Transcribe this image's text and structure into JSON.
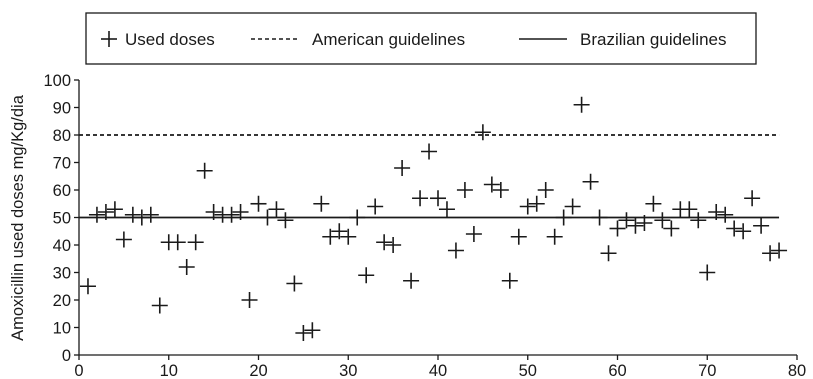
{
  "chart_data": {
    "type": "scatter",
    "title": "",
    "xlabel": "",
    "ylabel": "Amoxicillin used doses mg/Kg/dia",
    "xlim": [
      0,
      80
    ],
    "ylim": [
      0,
      100
    ],
    "x_ticks": [
      "0",
      "10",
      "20",
      "30",
      "40",
      "50",
      "60",
      "70",
      "80"
    ],
    "y_ticks": [
      "0",
      "10",
      "20",
      "30",
      "40",
      "50",
      "60",
      "70",
      "80",
      "90",
      "100"
    ],
    "grid": false,
    "legend_position": "top",
    "series": [
      {
        "name": "Used doses",
        "marker": "plus",
        "color": "#1a1a1a",
        "points": [
          [
            1,
            25
          ],
          [
            2,
            51
          ],
          [
            3,
            52
          ],
          [
            4,
            53
          ],
          [
            5,
            42
          ],
          [
            6,
            51
          ],
          [
            7,
            50
          ],
          [
            8,
            51
          ],
          [
            9,
            18
          ],
          [
            10,
            41
          ],
          [
            11,
            41
          ],
          [
            12,
            32
          ],
          [
            13,
            41
          ],
          [
            14,
            67
          ],
          [
            15,
            52
          ],
          [
            16,
            51
          ],
          [
            17,
            51
          ],
          [
            18,
            52
          ],
          [
            19,
            20
          ],
          [
            20,
            55
          ],
          [
            21,
            50
          ],
          [
            22,
            53
          ],
          [
            23,
            49
          ],
          [
            24,
            26
          ],
          [
            25,
            8
          ],
          [
            26,
            9
          ],
          [
            27,
            55
          ],
          [
            28,
            43
          ],
          [
            29,
            45
          ],
          [
            30,
            43
          ],
          [
            31,
            50
          ],
          [
            32,
            29
          ],
          [
            33,
            54
          ],
          [
            34,
            41
          ],
          [
            35,
            40
          ],
          [
            36,
            68
          ],
          [
            37,
            27
          ],
          [
            38,
            57
          ],
          [
            39,
            74
          ],
          [
            40,
            57
          ],
          [
            41,
            53
          ],
          [
            42,
            38
          ],
          [
            43,
            60
          ],
          [
            44,
            44
          ],
          [
            45,
            81
          ],
          [
            46,
            62
          ],
          [
            47,
            60
          ],
          [
            48,
            27
          ],
          [
            49,
            43
          ],
          [
            50,
            54
          ],
          [
            51,
            55
          ],
          [
            52,
            60
          ],
          [
            53,
            43
          ],
          [
            54,
            50
          ],
          [
            55,
            54
          ],
          [
            56,
            91
          ],
          [
            57,
            63
          ],
          [
            58,
            50
          ],
          [
            59,
            37
          ],
          [
            60,
            46
          ],
          [
            61,
            49
          ],
          [
            62,
            47
          ],
          [
            63,
            48
          ],
          [
            64,
            55
          ],
          [
            65,
            49
          ],
          [
            66,
            46
          ],
          [
            67,
            53
          ],
          [
            68,
            53
          ],
          [
            69,
            49
          ],
          [
            70,
            30
          ],
          [
            71,
            52
          ],
          [
            72,
            51
          ],
          [
            73,
            46
          ],
          [
            74,
            45
          ],
          [
            75,
            57
          ],
          [
            76,
            47
          ],
          [
            77,
            37
          ],
          [
            78,
            38
          ]
        ]
      },
      {
        "name": "American guidelines",
        "style": "dashed",
        "color": "#1a1a1a",
        "y": 80,
        "x_range": [
          0,
          78
        ]
      },
      {
        "name": "Brazilian guidelines",
        "style": "solid",
        "color": "#1a1a1a",
        "y": 50,
        "x_range": [
          0,
          78
        ]
      }
    ]
  }
}
